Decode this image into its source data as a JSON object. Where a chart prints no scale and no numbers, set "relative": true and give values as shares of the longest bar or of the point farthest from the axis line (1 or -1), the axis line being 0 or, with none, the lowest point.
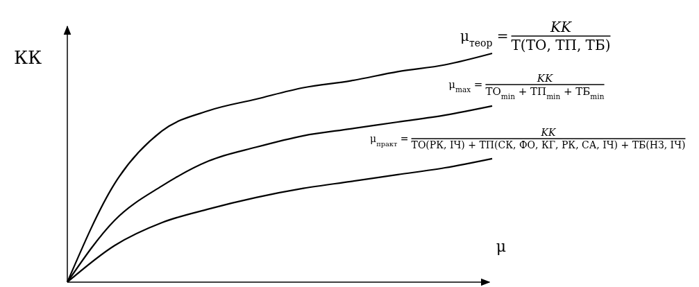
{
  "chart_data": {
    "type": "line",
    "relative": true,
    "xlabel": "μ",
    "ylabel": "КК",
    "categories": [
      null,
      null,
      null,
      null,
      null,
      null,
      null,
      null,
      null,
      null
    ],
    "series": [
      {
        "color": "#000000",
        "values": [
          0,
          0.43,
          0.66,
          0.75,
          0.8,
          0.85,
          0.88,
          0.92,
          0.95,
          1.0
        ]
      },
      {
        "color": "#000000",
        "values": [
          0,
          0.27,
          0.42,
          0.53,
          0.59,
          0.64,
          0.67,
          0.7,
          0.73,
          0.77
        ]
      },
      {
        "color": "#000000",
        "values": [
          0,
          0.16,
          0.26,
          0.32,
          0.37,
          0.41,
          0.44,
          0.47,
          0.5,
          0.54
        ]
      }
    ],
    "annotations": [
      "μ$_{теор}$ =",
      "KK",
      "Т(ТО, ТП, ТБ)",
      "μ$_{max}$ =",
      "KK",
      "ТО$_{min}$ + ТП$_{min}$ + ТБ$_{min}$",
      "μ$_{практ}$ =",
      "KK",
      "ТО(РК, ІЧ) + ТП(СК, ФО, КГ, РК, СА, ІЧ) + ТБ(НЗ, ІЧ)"
    ],
    "marker": "none",
    "line_style": "solid"
  }
}
